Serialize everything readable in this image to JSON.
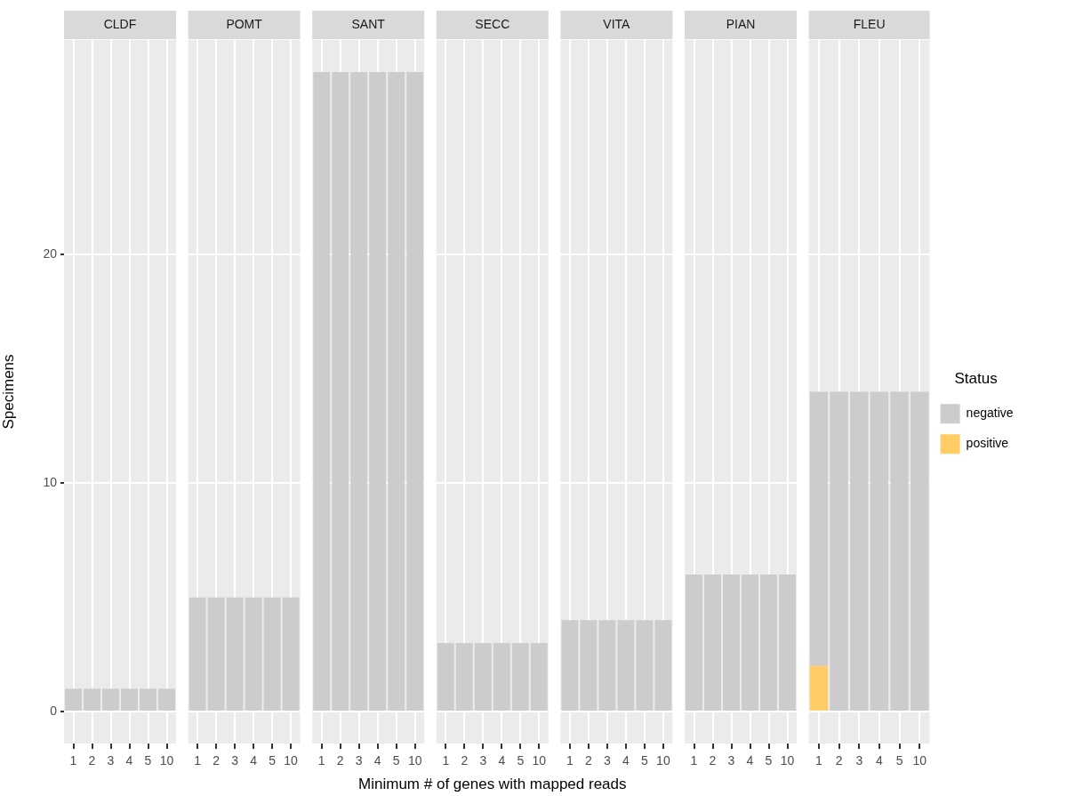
{
  "chart_data": [
    {
      "type": "bar",
      "title": "CLDF",
      "ylabel": "Specimens",
      "categories": [
        "1",
        "2",
        "3",
        "4",
        "5",
        "10"
      ],
      "series": [
        {
          "color": "#cccccc",
          "values": [
            1,
            1,
            1,
            1,
            1,
            1
          ]
        }
      ],
      "ylim": [
        -1.4,
        29.4
      ],
      "yticks": [
        0,
        10,
        20
      ],
      "grid": true,
      "legend": false
    },
    {
      "type": "bar",
      "title": "POMT",
      "categories": [
        "1",
        "2",
        "3",
        "4",
        "5",
        "10"
      ],
      "series": [
        {
          "color": "#cccccc",
          "values": [
            5,
            5,
            5,
            5,
            5,
            5
          ]
        }
      ],
      "ylim": [
        -1.4,
        29.4
      ],
      "yticks": [
        0,
        10,
        20
      ],
      "grid": true,
      "legend": false,
      "tick_labels": "x"
    },
    {
      "type": "bar",
      "title": "SANT",
      "categories": [
        "1",
        "2",
        "3",
        "4",
        "5",
        "10"
      ],
      "series": [
        {
          "color": "#cccccc",
          "values": [
            28,
            28,
            28,
            28,
            28,
            28
          ]
        }
      ],
      "ylim": [
        -1.4,
        29.4
      ],
      "yticks": [
        0,
        10,
        20
      ],
      "grid": true,
      "legend": false,
      "tick_labels": "x"
    },
    {
      "type": "bar",
      "title": "SECC",
      "xlabel": "Minimum # of genes with mapped reads",
      "categories": [
        "1",
        "2",
        "3",
        "4",
        "5",
        "10"
      ],
      "series": [
        {
          "color": "#cccccc",
          "values": [
            3,
            3,
            3,
            3,
            3,
            3
          ]
        }
      ],
      "ylim": [
        -1.4,
        29.4
      ],
      "yticks": [
        0,
        10,
        20
      ],
      "grid": true,
      "legend": false,
      "tick_labels": "x"
    },
    {
      "type": "bar",
      "title": "VITA",
      "categories": [
        "1",
        "2",
        "3",
        "4",
        "5",
        "10"
      ],
      "series": [
        {
          "color": "#cccccc",
          "values": [
            4,
            4,
            4,
            4,
            4,
            4
          ]
        }
      ],
      "ylim": [
        -1.4,
        29.4
      ],
      "yticks": [
        0,
        10,
        20
      ],
      "grid": true,
      "legend": false,
      "tick_labels": "x"
    },
    {
      "type": "bar",
      "title": "PIAN",
      "categories": [
        "1",
        "2",
        "3",
        "4",
        "5",
        "10"
      ],
      "series": [
        {
          "color": "#cccccc",
          "values": [
            6,
            6,
            6,
            6,
            6,
            6
          ]
        }
      ],
      "ylim": [
        -1.4,
        29.4
      ],
      "yticks": [
        0,
        10,
        20
      ],
      "grid": true,
      "legend": false,
      "tick_labels": "x"
    },
    {
      "type": "bar",
      "title": "FLEU",
      "categories": [
        "1",
        "2",
        "3",
        "4",
        "5",
        "10"
      ],
      "stacked": true,
      "legend": "right",
      "legend_title": "Status",
      "series": [
        {
          "name": "positive",
          "color": "#ffcc66",
          "values": [
            2,
            null,
            null,
            null,
            null,
            null
          ]
        },
        {
          "name": "negative",
          "color": "#cccccc",
          "values": [
            12,
            14,
            14,
            14,
            14,
            14
          ]
        }
      ],
      "ylim": [
        -1.4,
        29.4
      ],
      "yticks": [
        0,
        10,
        20
      ],
      "grid": true,
      "tick_labels": "x"
    }
  ]
}
